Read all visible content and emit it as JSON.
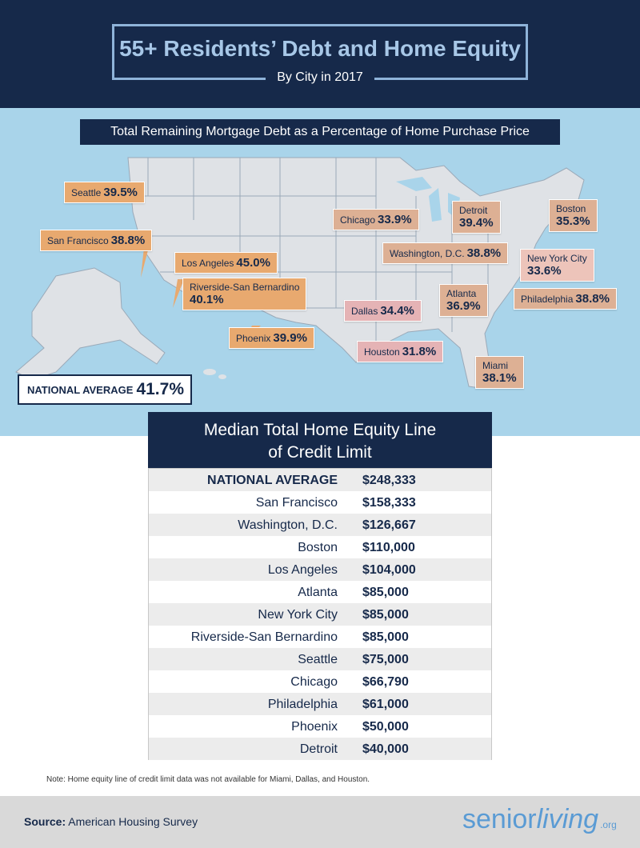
{
  "header": {
    "title": "55+ Residents’ Debt and Home Equity",
    "subtitle": "By City in 2017"
  },
  "map": {
    "title": "Total Remaining Mortgage Debt as a Percentage of Home Purchase Price",
    "national_average": {
      "label": "NATIONAL AVERAGE",
      "value": "41.7%"
    },
    "callouts": [
      {
        "city": "Seattle",
        "value": "39.5%"
      },
      {
        "city": "San Francisco",
        "value": "38.8%"
      },
      {
        "city": "Los Angeles",
        "value": "45.0%"
      },
      {
        "city": "Riverside-San Bernardino",
        "value": "40.1%"
      },
      {
        "city": "Phoenix",
        "value": "39.9%"
      },
      {
        "city": "Chicago",
        "value": "33.9%"
      },
      {
        "city": "Detroit",
        "value": "39.4%"
      },
      {
        "city": "Boston",
        "value": "35.3%"
      },
      {
        "city": "Washington, D.C.",
        "value": "38.8%"
      },
      {
        "city": "New York City",
        "value": "33.6%"
      },
      {
        "city": "Philadelphia",
        "value": "38.8%"
      },
      {
        "city": "Atlanta",
        "value": "36.9%"
      },
      {
        "city": "Dallas",
        "value": "34.4%"
      },
      {
        "city": "Houston",
        "value": "31.8%"
      },
      {
        "city": "Miami",
        "value": "38.1%"
      }
    ]
  },
  "table": {
    "title_line1": "Median Total Home Equity Line",
    "title_line2": "of Credit Limit",
    "rows": [
      {
        "city": "NATIONAL AVERAGE",
        "value": "$248,333"
      },
      {
        "city": "San Francisco",
        "value": "$158,333"
      },
      {
        "city": "Washington, D.C.",
        "value": "$126,667"
      },
      {
        "city": "Boston",
        "value": "$110,000"
      },
      {
        "city": "Los Angeles",
        "value": "$104,000"
      },
      {
        "city": "Atlanta",
        "value": "$85,000"
      },
      {
        "city": "New York City",
        "value": "$85,000"
      },
      {
        "city": "Riverside-San Bernardino",
        "value": "$85,000"
      },
      {
        "city": "Seattle",
        "value": "$75,000"
      },
      {
        "city": "Chicago",
        "value": "$66,790"
      },
      {
        "city": "Philadelphia",
        "value": "$61,000"
      },
      {
        "city": "Phoenix",
        "value": "$50,000"
      },
      {
        "city": "Detroit",
        "value": "$40,000"
      }
    ]
  },
  "note": "Note: Home equity line of credit limit data was not available for Miami, Dallas, and Houston.",
  "footer": {
    "source_label": "Source:",
    "source_text": "American Housing Survey",
    "brand_part1": "senior",
    "brand_part2": "living",
    "brand_suffix": ".org"
  },
  "colors": {
    "navy": "#16294a",
    "map_water": "#a9d4ea",
    "land": "#dfe2e6",
    "callout_orange": "#e8a96f",
    "callout_pink": "#e5b3b5",
    "brand_blue": "#5a9bd4"
  }
}
